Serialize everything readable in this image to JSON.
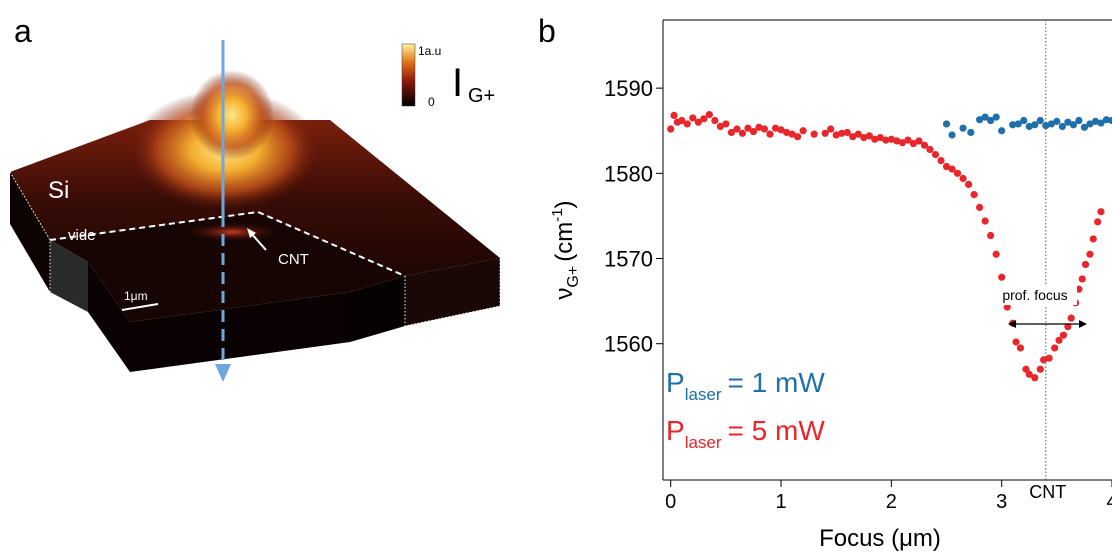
{
  "panel_a": {
    "label": "a",
    "si": "Si",
    "vide": "vide",
    "cnt": "CNT",
    "scale": "1μm",
    "colorbar_max": "1a.u",
    "colorbar_min": "0",
    "intensity": "I",
    "intensity_sub": "G+"
  },
  "panel_b_label": "b",
  "chart_data": {
    "type": "scatter",
    "x_label": "Focus  (μm)",
    "y_label": {
      "symbol": "ν",
      "sub": "G+",
      "unit": "(cm",
      "sup": "-1",
      "close": ")"
    },
    "xlim": [
      -0.07,
      4.0
    ],
    "ylim": [
      1544,
      1598
    ],
    "xticks": [
      0,
      1,
      2,
      3,
      4
    ],
    "yticks": [
      1560,
      1570,
      1580,
      1590
    ],
    "vline": 3.4,
    "annotations": {
      "cnt": "CNT",
      "focus": "prof. focus"
    },
    "series": [
      {
        "label_parts": [
          "P",
          "laser",
          "= 1 mW"
        ],
        "color": "#1f6fa8",
        "x": [
          2.5,
          2.55,
          2.65,
          2.72,
          2.8,
          2.85,
          2.9,
          2.95,
          3.0,
          3.1,
          3.15,
          3.2,
          3.25,
          3.3,
          3.35,
          3.4,
          3.45,
          3.5,
          3.55,
          3.6,
          3.65,
          3.7,
          3.75,
          3.8,
          3.85,
          3.9,
          3.95,
          4.0
        ],
        "values": [
          1585.8,
          1584.5,
          1585.3,
          1584.8,
          1586.3,
          1586.6,
          1586.2,
          1586.6,
          1585.0,
          1585.7,
          1585.8,
          1586.2,
          1585.5,
          1585.7,
          1586.2,
          1585.6,
          1585.8,
          1586.1,
          1585.5,
          1586.0,
          1585.7,
          1586.2,
          1585.4,
          1585.8,
          1586.1,
          1585.9,
          1586.3,
          1586.2
        ]
      },
      {
        "label_parts": [
          "P",
          "laser",
          "= 5 mW"
        ],
        "color": "#e8262b",
        "x": [
          0.0,
          0.03,
          0.06,
          0.1,
          0.15,
          0.2,
          0.25,
          0.3,
          0.35,
          0.4,
          0.45,
          0.5,
          0.55,
          0.6,
          0.65,
          0.7,
          0.75,
          0.8,
          0.85,
          0.9,
          0.95,
          1.0,
          1.05,
          1.1,
          1.15,
          1.2,
          1.3,
          1.4,
          1.45,
          1.5,
          1.55,
          1.6,
          1.65,
          1.7,
          1.75,
          1.8,
          1.85,
          1.9,
          1.95,
          2.0,
          2.05,
          2.1,
          2.15,
          2.2,
          2.25,
          2.3,
          2.35,
          2.4,
          2.45,
          2.5,
          2.55,
          2.6,
          2.65,
          2.7,
          2.75,
          2.8,
          2.85,
          2.9,
          2.95,
          3.0,
          3.05,
          3.1,
          3.13,
          3.17,
          3.22,
          3.25,
          3.3,
          3.35,
          3.38,
          3.43,
          3.48,
          3.52,
          3.56,
          3.6,
          3.63,
          3.67,
          3.7,
          3.73,
          3.76,
          3.8,
          3.83,
          3.87,
          3.9
        ],
        "values": [
          1585.2,
          1586.8,
          1586.0,
          1586.2,
          1585.8,
          1586.5,
          1586.0,
          1586.4,
          1586.9,
          1586.2,
          1585.5,
          1585.8,
          1584.8,
          1585.2,
          1584.7,
          1585.3,
          1584.9,
          1585.4,
          1585.2,
          1584.6,
          1585.3,
          1585.1,
          1584.8,
          1584.6,
          1584.3,
          1585.0,
          1584.6,
          1584.7,
          1585.2,
          1584.5,
          1584.7,
          1584.8,
          1584.3,
          1584.6,
          1584.2,
          1584.4,
          1584.0,
          1584.2,
          1583.9,
          1584.0,
          1583.8,
          1583.6,
          1583.9,
          1583.5,
          1583.8,
          1583.3,
          1582.8,
          1582.2,
          1581.5,
          1580.8,
          1580.5,
          1580.0,
          1579.4,
          1578.7,
          1577.5,
          1576.0,
          1574.4,
          1572.7,
          1570.5,
          1567.8,
          1564.3,
          1562.4,
          1560.2,
          1559.5,
          1557.0,
          1556.4,
          1556.0,
          1557.0,
          1558.1,
          1558.3,
          1559.5,
          1560.4,
          1561.0,
          1562.0,
          1563.0,
          1564.8,
          1566.4,
          1567.6,
          1569.3,
          1570.5,
          1572.3,
          1574.3,
          1575.5
        ]
      }
    ]
  }
}
